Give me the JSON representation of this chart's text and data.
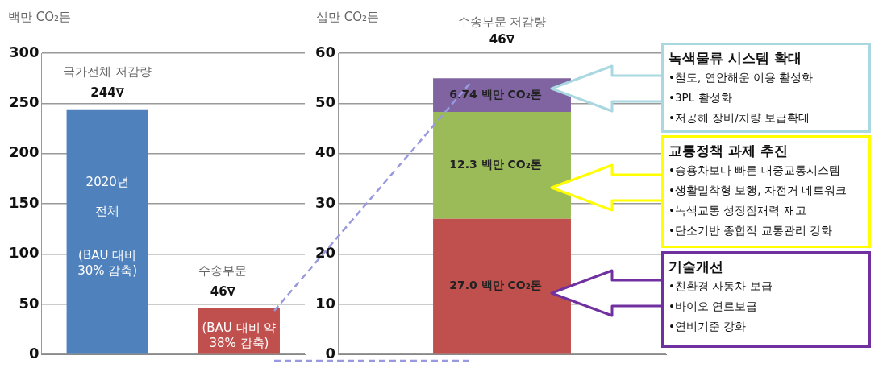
{
  "chart_data": [
    {
      "type": "bar",
      "ylabel": "백만 CO₂톤",
      "categories": [
        null,
        null
      ],
      "values": [
        244,
        46
      ],
      "colors": [
        "#4f81bd",
        "#c0504d"
      ],
      "value_labels": [
        "244∇",
        "46∇"
      ],
      "ylim": [
        0,
        300
      ],
      "yticks": [
        0,
        50,
        100,
        150,
        200,
        250,
        300
      ],
      "grid": "y",
      "legend": false,
      "annotations": [
        "국가전체 저감량",
        "수송부문",
        "2020년",
        "전체",
        "(BAU 대비\n30% 감축)",
        "(BAU 대비 약\n38% 감축)"
      ]
    },
    {
      "type": "bar",
      "stacked": true,
      "title": "수송부문 저감량",
      "ylabel": "십만 CO₂톤",
      "categories": [
        null
      ],
      "annotations": [
        "46∇",
        "27.0 백만 CO₂톤",
        "12.3 백만 CO₂톤",
        "6.74 백만 CO₂톤"
      ],
      "ylim": [
        0,
        60
      ],
      "yticks": [
        0,
        10,
        20,
        30,
        40,
        50,
        60
      ],
      "grid": "y",
      "legend": false,
      "series": [
        {
          "color": "#c0504d",
          "values": [
            27.0
          ]
        },
        {
          "color": "#9bbb59",
          "values": [
            21.3
          ]
        },
        {
          "color": "#8064a2",
          "values": [
            6.7
          ]
        }
      ]
    },
    {
      "type": "other",
      "annotations": [
        "녹색물류 시스템 확대\n•철도, 연안해운 이용 활성화\n•3PL 활성화\n•저공해 장비/차량 보급확대",
        "교통정책 과제 추진\n•승용차보다 빠른 대중교통시스템\n•생활밀착형 보행, 자전거 네트워크\n•녹색교통 성장잠재력 재고\n•탄소기반 종합적 교통관리 강화",
        "기술개선\n•친환경 자동차 보급\n•바이오 연료보급\n•연비기준 강화"
      ]
    }
  ]
}
